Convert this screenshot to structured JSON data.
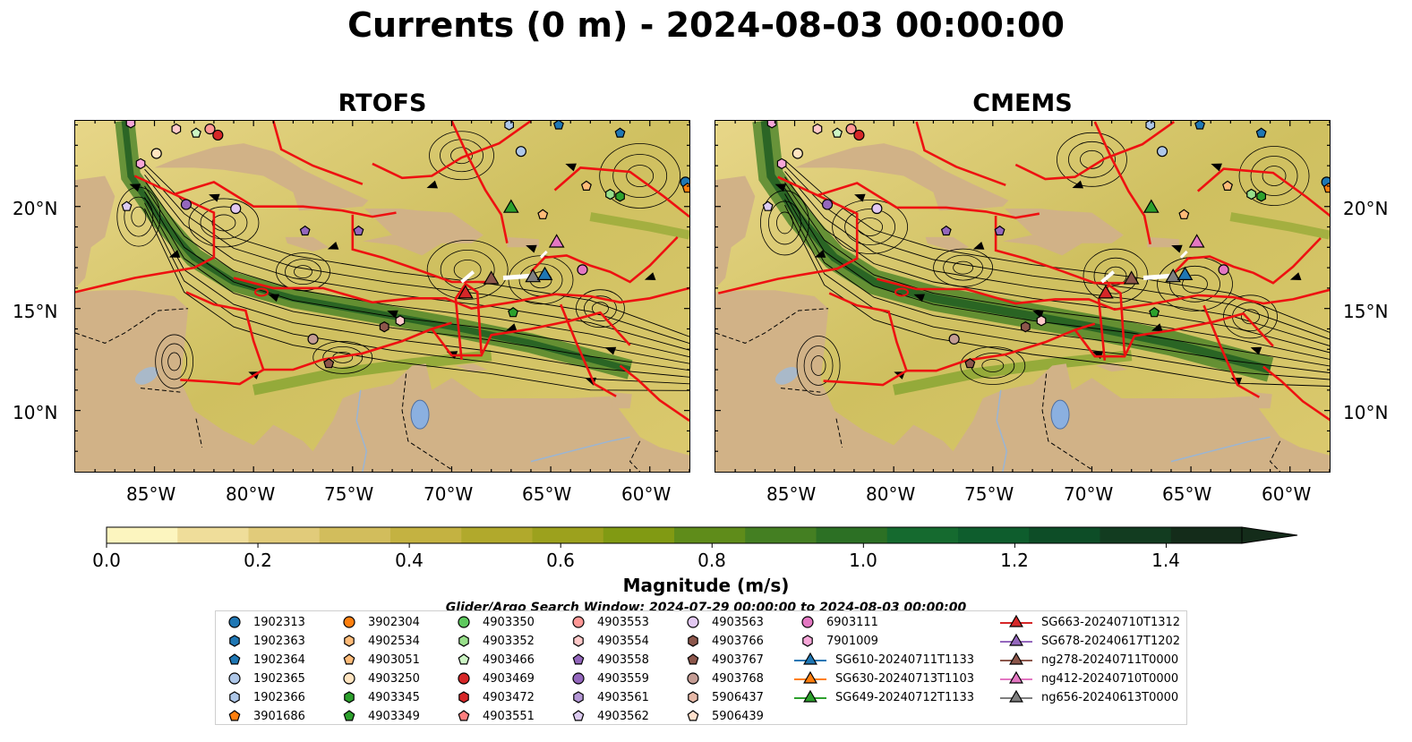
{
  "figure": {
    "title": "Currents (0 m) - 2024-08-03 00:00:00"
  },
  "panels": [
    {
      "id": "rtofs",
      "title": "RTOFS"
    },
    {
      "id": "cmems",
      "title": "CMEMS"
    }
  ],
  "axes": {
    "lat_labels": [
      "20°N",
      "15°N",
      "10°N"
    ],
    "lon_labels": [
      "85°W",
      "80°W",
      "75°W",
      "70°W",
      "65°W",
      "60°W"
    ],
    "lon_range": [
      -89,
      -58
    ],
    "lat_range": [
      7,
      24.2
    ]
  },
  "colorbar": {
    "title": "Magnitude (m/s)",
    "tick_labels": [
      "0.0",
      "0.2",
      "0.4",
      "0.6",
      "0.8",
      "1.0",
      "1.2",
      "1.4"
    ],
    "ticks": [
      0.0,
      0.2,
      0.4,
      0.6,
      0.8,
      1.0,
      1.2,
      1.4
    ],
    "range": [
      0.0,
      1.5
    ],
    "extend": "max",
    "colors": [
      "#fcf5bf",
      "#efdd9a",
      "#e1cb7a",
      "#d2bd5c",
      "#c4b241",
      "#b1a92c",
      "#9ca11d",
      "#819a13",
      "#5f8c1a",
      "#447f22",
      "#2c7024",
      "#156a2f",
      "#0e5d2d",
      "#0d4d27",
      "#123c20",
      "#142c1a"
    ]
  },
  "legend": {
    "title": "Glider/Argo Search Window: 2024-07-29 00:00:00 to 2024-08-03 00:00:00",
    "argo": [
      {
        "id": "1902313",
        "color": "#1f77b4",
        "marker": "circle"
      },
      {
        "id": "1902363",
        "color": "#1f77b4",
        "marker": "hexagon"
      },
      {
        "id": "1902364",
        "color": "#1f77b4",
        "marker": "pentagon"
      },
      {
        "id": "1902365",
        "color": "#aec7e8",
        "marker": "circle"
      },
      {
        "id": "1902366",
        "color": "#aec7e8",
        "marker": "hexagon"
      },
      {
        "id": "3901686",
        "color": "#ff7f0e",
        "marker": "pentagon"
      },
      {
        "id": "3902304",
        "color": "#ff7f0e",
        "marker": "circle"
      },
      {
        "id": "4902534",
        "color": "#ffbb78",
        "marker": "hexagon"
      },
      {
        "id": "4903051",
        "color": "#ffbb78",
        "marker": "pentagon"
      },
      {
        "id": "4903250",
        "color": "#ffe4c0",
        "marker": "circle"
      },
      {
        "id": "4903345",
        "color": "#2ca02c",
        "marker": "hexagon"
      },
      {
        "id": "4903349",
        "color": "#2ca02c",
        "marker": "pentagon"
      },
      {
        "id": "4903350",
        "color": "#5ec95e",
        "marker": "circle"
      },
      {
        "id": "4903352",
        "color": "#98df8a",
        "marker": "hexagon"
      },
      {
        "id": "4903466",
        "color": "#ccf5c4",
        "marker": "pentagon"
      },
      {
        "id": "4903469",
        "color": "#d62728",
        "marker": "circle"
      },
      {
        "id": "4903472",
        "color": "#d62728",
        "marker": "hexagon"
      },
      {
        "id": "4903551",
        "color": "#ff7f7f",
        "marker": "pentagon"
      },
      {
        "id": "4903553",
        "color": "#ff9896",
        "marker": "circle"
      },
      {
        "id": "4903554",
        "color": "#ffc9c9",
        "marker": "hexagon"
      },
      {
        "id": "4903558",
        "color": "#9467bd",
        "marker": "pentagon"
      },
      {
        "id": "4903559",
        "color": "#9467bd",
        "marker": "circle"
      },
      {
        "id": "4903561",
        "color": "#b497d6",
        "marker": "hexagon"
      },
      {
        "id": "4903562",
        "color": "#dccbf0",
        "marker": "pentagon"
      },
      {
        "id": "4903563",
        "color": "#e2c8f2",
        "marker": "circle"
      },
      {
        "id": "4903766",
        "color": "#8c564b",
        "marker": "hexagon"
      },
      {
        "id": "4903767",
        "color": "#8c564b",
        "marker": "pentagon"
      },
      {
        "id": "4903768",
        "color": "#c49c94",
        "marker": "circle"
      },
      {
        "id": "5906437",
        "color": "#e7b9a8",
        "marker": "hexagon"
      },
      {
        "id": "5906439",
        "color": "#ffe0cc",
        "marker": "pentagon"
      },
      {
        "id": "6903111",
        "color": "#e377c2",
        "marker": "circle"
      },
      {
        "id": "7901009",
        "color": "#f7a6d8",
        "marker": "hexagon"
      }
    ],
    "gliders": [
      {
        "id": "SG610-20240711T1133",
        "color": "#1f77b4"
      },
      {
        "id": "SG630-20240713T1103",
        "color": "#ff7f0e"
      },
      {
        "id": "SG649-20240712T1133",
        "color": "#2ca02c"
      },
      {
        "id": "SG663-20240710T1312",
        "color": "#d62728"
      },
      {
        "id": "SG678-20240617T1202",
        "color": "#9467bd"
      },
      {
        "id": "ng278-20240711T0000",
        "color": "#8c564b"
      },
      {
        "id": "ng412-20240710T0000",
        "color": "#e377c2"
      },
      {
        "id": "ng656-20240613T0000",
        "color": "#7f7f7f"
      }
    ]
  },
  "map_markers": [
    {
      "id": "1902313",
      "lon": -58.2,
      "lat": 21.2
    },
    {
      "id": "1902364",
      "lon": -64.6,
      "lat": 24.0
    },
    {
      "id": "1902364",
      "lon": -61.5,
      "lat": 23.6
    },
    {
      "id": "1902365",
      "lon": -66.5,
      "lat": 22.7
    },
    {
      "id": "1902366",
      "lon": -67.1,
      "lat": 24.0
    },
    {
      "id": "3901686",
      "lon": -58.1,
      "lat": 20.9
    },
    {
      "id": "4903051",
      "lon": -63.2,
      "lat": 21.0
    },
    {
      "id": "4903051",
      "lon": -65.4,
      "lat": 19.6
    },
    {
      "id": "4903250",
      "lon": -84.9,
      "lat": 22.6
    },
    {
      "id": "4903345",
      "lon": -61.5,
      "lat": 20.5
    },
    {
      "id": "4903349",
      "lon": -66.9,
      "lat": 14.8
    },
    {
      "id": "4903352",
      "lon": -62.0,
      "lat": 20.6
    },
    {
      "id": "4903466",
      "lon": -82.9,
      "lat": 23.6
    },
    {
      "id": "4903469",
      "lon": -81.8,
      "lat": 23.5
    },
    {
      "id": "4903553",
      "lon": -82.2,
      "lat": 23.8
    },
    {
      "id": "4903554",
      "lon": -83.9,
      "lat": 23.8
    },
    {
      "id": "4903554",
      "lon": -72.6,
      "lat": 14.4
    },
    {
      "id": "4903558",
      "lon": -77.4,
      "lat": 18.8
    },
    {
      "id": "4903558",
      "lon": -74.7,
      "lat": 18.8
    },
    {
      "id": "4903559",
      "lon": -83.4,
      "lat": 20.1
    },
    {
      "id": "4903562",
      "lon": -86.4,
      "lat": 20.0
    },
    {
      "id": "4903563",
      "lon": -80.9,
      "lat": 19.9
    },
    {
      "id": "4903766",
      "lon": -73.4,
      "lat": 14.1
    },
    {
      "id": "4903767",
      "lon": -76.2,
      "lat": 12.3
    },
    {
      "id": "4903768",
      "lon": -77.0,
      "lat": 13.5
    },
    {
      "id": "6903111",
      "lon": -63.4,
      "lat": 16.9
    },
    {
      "id": "7901009",
      "lon": -85.7,
      "lat": 22.1
    },
    {
      "id": "7901009",
      "lon": -86.2,
      "lat": 24.1
    }
  ],
  "glider_positions": [
    {
      "id": "SG649-20240712T1133",
      "lon": -67.0,
      "lat": 20.0
    },
    {
      "id": "SG663-20240710T1312",
      "lon": -69.3,
      "lat": 15.8
    },
    {
      "id": "ng278-20240711T0000",
      "lon": -68.0,
      "lat": 16.5
    },
    {
      "id": "ng656-20240613T0000",
      "lon": -65.9,
      "lat": 16.6
    },
    {
      "id": "SG610-20240711T1133",
      "lon": -65.3,
      "lat": 16.7
    },
    {
      "id": "ng412-20240710T0000",
      "lon": -64.7,
      "lat": 18.3
    }
  ]
}
